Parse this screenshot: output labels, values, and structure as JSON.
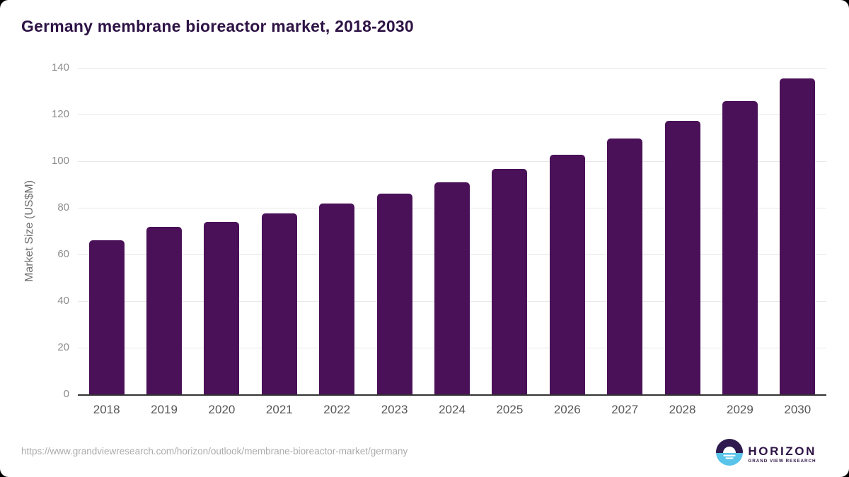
{
  "chart_data": {
    "type": "bar",
    "title": "Germany membrane bioreactor market, 2018-2030",
    "categories": [
      "2018",
      "2019",
      "2020",
      "2021",
      "2022",
      "2023",
      "2024",
      "2025",
      "2026",
      "2027",
      "2028",
      "2029",
      "2030"
    ],
    "values": [
      66.0,
      71.8,
      74.0,
      77.6,
      81.9,
      86.1,
      90.9,
      96.7,
      102.8,
      109.8,
      117.3,
      125.7,
      135.4
    ],
    "xlabel": "",
    "ylabel": "Market Size (US$M)",
    "ylim": [
      0,
      140
    ],
    "yticks": [
      0,
      20,
      40,
      60,
      80,
      100,
      120,
      140
    ],
    "grid": "horizontal-gridlines-on",
    "legend": "none",
    "bar_color": "#4a1158"
  },
  "colors": {
    "bar": "#4a1158",
    "title_text": "#2e1345",
    "gridline": "#e8e8e8",
    "axis_line": "#333333",
    "y_tick_text": "#8c8c8c",
    "x_tick_text": "#575757",
    "url_text": "#ababab",
    "logo_purple": "#2e1a4e",
    "logo_blue": "#59c4ea"
  },
  "footer": {
    "source_url": "https://www.grandviewresearch.com/horizon/outlook/membrane-bioreactor-market/germany",
    "logo": {
      "brand": "HORIZON",
      "subtitle": "GRAND VIEW RESEARCH"
    }
  }
}
